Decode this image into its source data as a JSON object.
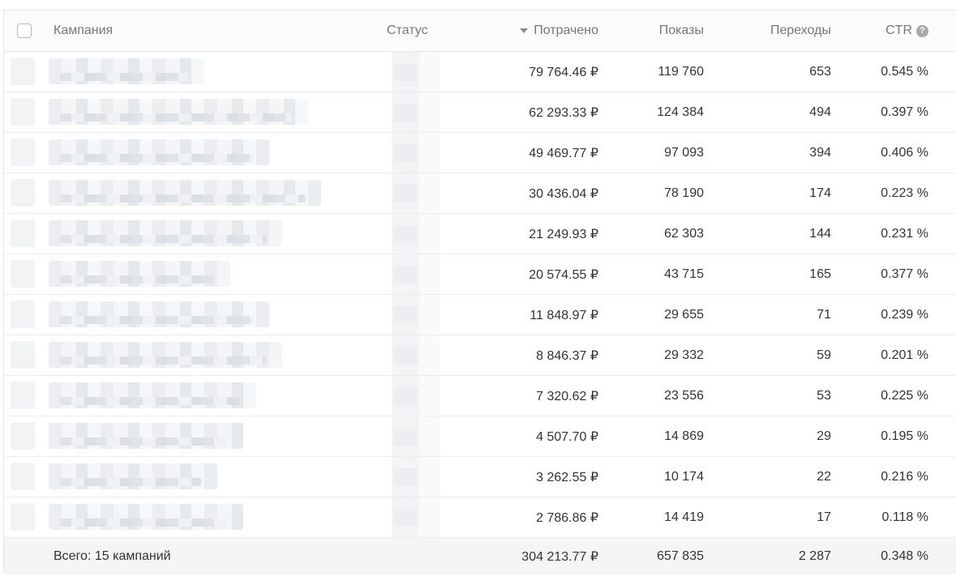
{
  "header": {
    "campaign": "Кампания",
    "status": "Статус",
    "spent": "Потрачено",
    "shows": "Показы",
    "clicks": "Переходы",
    "ctr": "CTR",
    "help": "?"
  },
  "rows": [
    {
      "spent": "79 764.46 ₽",
      "shows": "119 760",
      "clicks": "653",
      "ctr": "0.545 %"
    },
    {
      "spent": "62 293.33 ₽",
      "shows": "124 384",
      "clicks": "494",
      "ctr": "0.397 %"
    },
    {
      "spent": "49 469.77 ₽",
      "shows": "97 093",
      "clicks": "394",
      "ctr": "0.406 %"
    },
    {
      "spent": "30 436.04 ₽",
      "shows": "78 190",
      "clicks": "174",
      "ctr": "0.223 %"
    },
    {
      "spent": "21 249.93 ₽",
      "shows": "62 303",
      "clicks": "144",
      "ctr": "0.231 %"
    },
    {
      "spent": "20 574.55 ₽",
      "shows": "43 715",
      "clicks": "165",
      "ctr": "0.377 %"
    },
    {
      "spent": "11 848.97 ₽",
      "shows": "29 655",
      "clicks": "71",
      "ctr": "0.239 %"
    },
    {
      "spent": "8 846.37 ₽",
      "shows": "29 332",
      "clicks": "59",
      "ctr": "0.201 %"
    },
    {
      "spent": "7 320.62 ₽",
      "shows": "23 556",
      "clicks": "53",
      "ctr": "0.225 %"
    },
    {
      "spent": "4 507.70 ₽",
      "shows": "14 869",
      "clicks": "29",
      "ctr": "0.195 %"
    },
    {
      "spent": "3 262.55 ₽",
      "shows": "10 174",
      "clicks": "22",
      "ctr": "0.216 %"
    },
    {
      "spent": "2 786.86 ₽",
      "shows": "14 419",
      "clicks": "17",
      "ctr": "0.118 %"
    }
  ],
  "footer": {
    "label": "Всего: 15 кампаний",
    "spent": "304 213.77 ₽",
    "shows": "657 835",
    "clicks": "2 287",
    "ctr": "0.348 %"
  }
}
